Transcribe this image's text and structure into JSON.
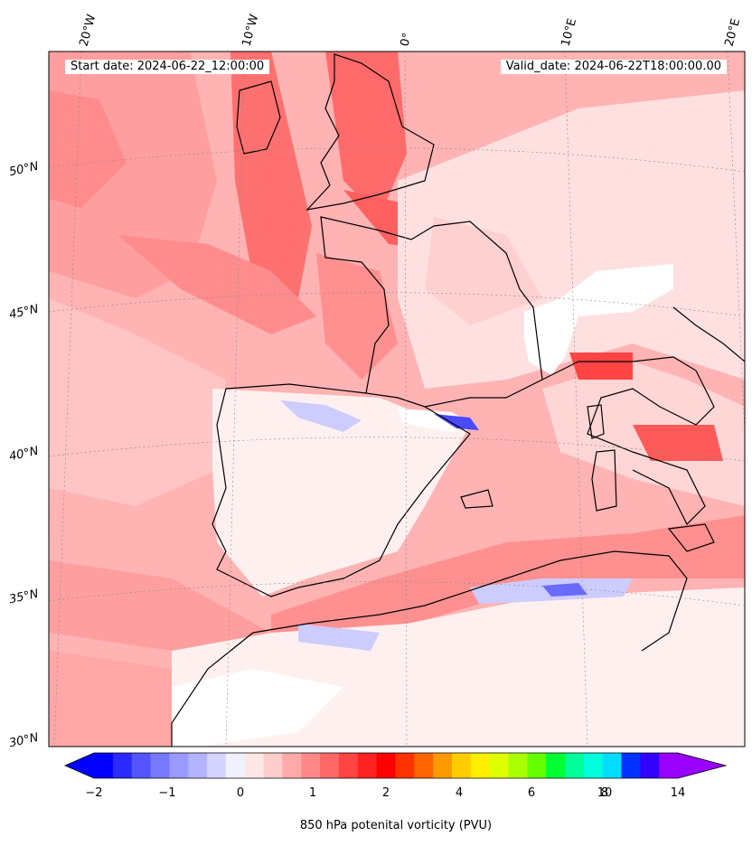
{
  "header": {
    "start_date": "Start date: 2024-06-22_12:00:00",
    "valid_date": "Valid_date: 2024-06-22T18:00:00.00"
  },
  "graticule": {
    "lon_labels": [
      "20°W",
      "10°W",
      "0°",
      "10°E",
      "20°E"
    ],
    "lat_labels": [
      "50°N",
      "45°N",
      "40°N",
      "35°N",
      "30°N"
    ]
  },
  "colorbar": {
    "tick_labels": [
      "−2",
      "−1",
      "0",
      "1",
      "2",
      "4",
      "6",
      "8",
      "10",
      "14"
    ],
    "label": "850 hPa potenital vorticity (PVU)",
    "colors": [
      "#0000ff",
      "#2a2aff",
      "#5555ff",
      "#7777ff",
      "#9999ff",
      "#b3b3ff",
      "#d4d4ff",
      "#f0f0ff",
      "#ffe6e6",
      "#ffcccc",
      "#ffaaaa",
      "#ff8888",
      "#ff6666",
      "#ff4444",
      "#ff2222",
      "#ff0000",
      "#ff3300",
      "#ff6600",
      "#ff9900",
      "#ffcc00",
      "#ffee00",
      "#ddff00",
      "#aaff00",
      "#66ff00",
      "#00ff33",
      "#00ff99",
      "#00ffdd",
      "#00ddff",
      "#0033ff",
      "#3300ff",
      "#9900ff"
    ]
  },
  "map_colors": {
    "base": "#ffb3b3",
    "light": "#ffe0e0",
    "pale": "#fff0f0",
    "medium": "#ff8c8c",
    "strong": "#ff5050",
    "blue_light": "#ccccff",
    "blue_dark": "#4a4aff",
    "coast": "#000000"
  }
}
